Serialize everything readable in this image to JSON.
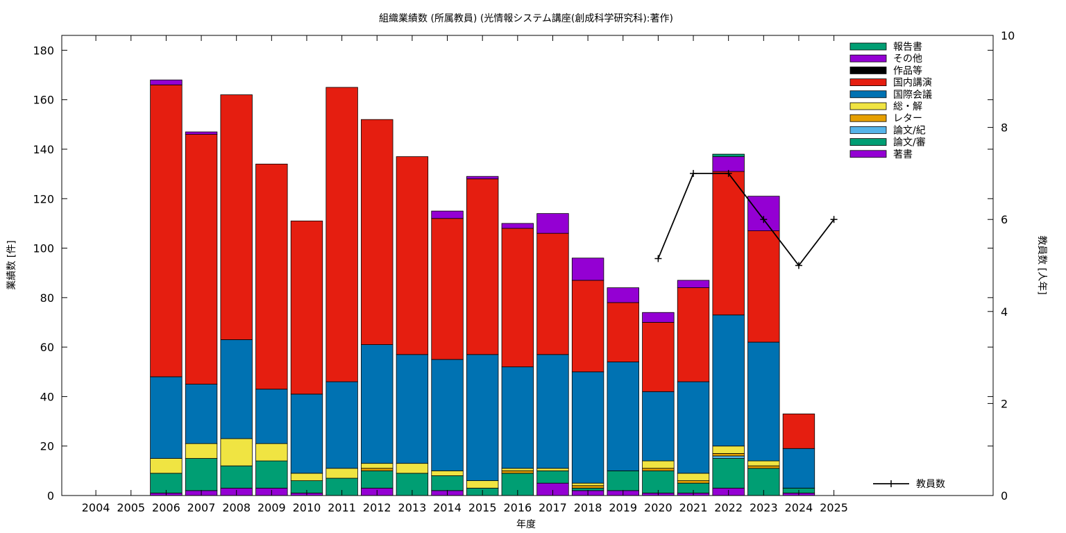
{
  "chart_data": {
    "type": "bar",
    "stacked": true,
    "title": "組織業績数 (所属教員) (光情報システム講座(創成科学研究科):著作)",
    "xlabel": "年度",
    "ylabel": "業績数 [件]",
    "y2label": "教員数 [人年]",
    "ylim": [
      0,
      186
    ],
    "y2lim": [
      0,
      10
    ],
    "yticks": [
      0,
      20,
      40,
      60,
      80,
      100,
      120,
      140,
      160,
      180
    ],
    "y2ticks": [
      0,
      2,
      4,
      6,
      8,
      10
    ],
    "grid": false,
    "legend_position": "top-right",
    "categories": [
      "2004",
      "2005",
      "2006",
      "2007",
      "2008",
      "2009",
      "2010",
      "2011",
      "2012",
      "2013",
      "2014",
      "2015",
      "2016",
      "2017",
      "2018",
      "2019",
      "2020",
      "2021",
      "2022",
      "2023",
      "2024",
      "2025"
    ],
    "series": [
      {
        "name": "著書",
        "color": "#9400d3",
        "values": [
          0,
          0,
          1,
          2,
          3,
          3,
          1,
          0,
          3,
          0,
          2,
          0,
          0,
          5,
          2,
          2,
          1,
          1,
          3,
          0,
          1,
          0
        ]
      },
      {
        "name": "論文/審",
        "color": "#009e73",
        "values": [
          0,
          0,
          8,
          13,
          9,
          11,
          5,
          7,
          7,
          9,
          6,
          3,
          9,
          5,
          1,
          8,
          9,
          4,
          12,
          11,
          2,
          0
        ]
      },
      {
        "name": "論文/紀",
        "color": "#56b4e9",
        "values": [
          0,
          0,
          0,
          0,
          0,
          0,
          0,
          0,
          0,
          0,
          0,
          0,
          0,
          0,
          0,
          0,
          0,
          0,
          1,
          0,
          0,
          0
        ]
      },
      {
        "name": "レター",
        "color": "#e69f00",
        "values": [
          0,
          0,
          0,
          0,
          0,
          0,
          0,
          0,
          1,
          0,
          0,
          0,
          1,
          0,
          1,
          0,
          1,
          1,
          1,
          1,
          0,
          0
        ]
      },
      {
        "name": "総・解",
        "color": "#f0e442",
        "values": [
          0,
          0,
          6,
          6,
          11,
          7,
          3,
          4,
          2,
          4,
          2,
          3,
          1,
          1,
          1,
          0,
          3,
          3,
          3,
          2,
          0,
          0
        ]
      },
      {
        "name": "国際会議",
        "color": "#0072b2",
        "values": [
          0,
          0,
          33,
          24,
          40,
          22,
          32,
          35,
          48,
          44,
          45,
          51,
          41,
          46,
          45,
          44,
          28,
          37,
          53,
          48,
          16,
          0
        ]
      },
      {
        "name": "国内講演",
        "color": "#e51e10",
        "values": [
          0,
          0,
          118,
          101,
          99,
          91,
          70,
          119,
          91,
          80,
          57,
          71,
          56,
          49,
          37,
          24,
          28,
          38,
          58,
          45,
          14,
          0
        ]
      },
      {
        "name": "作品等",
        "color": "#000000",
        "values": [
          0,
          0,
          0,
          0,
          0,
          0,
          0,
          0,
          0,
          0,
          0,
          0,
          0,
          0,
          0,
          0,
          0,
          0,
          0,
          0,
          0,
          0
        ]
      },
      {
        "name": "その他",
        "color": "#9400d3",
        "values": [
          0,
          0,
          2,
          1,
          0,
          0,
          0,
          0,
          0,
          0,
          3,
          1,
          2,
          8,
          9,
          6,
          4,
          3,
          6,
          14,
          0,
          0
        ]
      },
      {
        "name": "報告書",
        "color": "#009e73",
        "values": [
          0,
          0,
          0,
          0,
          0,
          0,
          0,
          0,
          0,
          0,
          0,
          0,
          0,
          0,
          0,
          0,
          0,
          0,
          1,
          0,
          0,
          0
        ]
      }
    ],
    "line_series": {
      "name": "教員数",
      "color": "#000000",
      "axis": "y2",
      "x": [
        "2020",
        "2021",
        "2022",
        "2023",
        "2024",
        "2025"
      ],
      "values": [
        5.15,
        7,
        7,
        6,
        5,
        6
      ]
    }
  }
}
